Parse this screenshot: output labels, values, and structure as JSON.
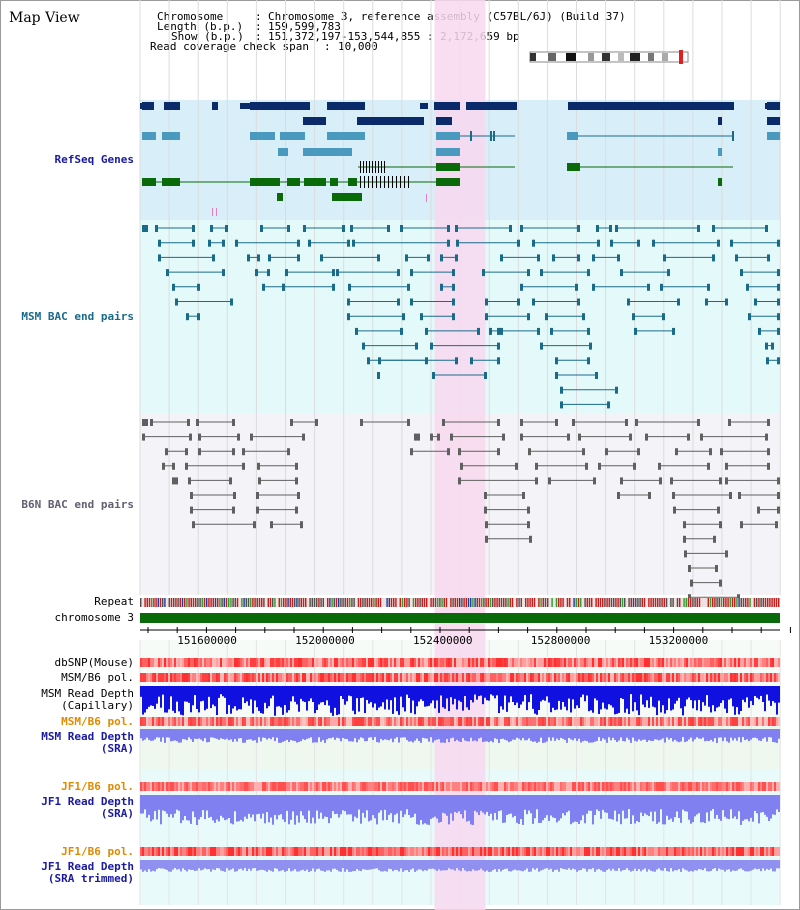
{
  "page_title": "Map View",
  "header": {
    "chromosome_key": "Chromosome",
    "chromosome_val": "Chromosome 3, reference assembly (C57BL/6J) (Build 37)",
    "length_key": "Length (b.p.)",
    "length_val": "159,599,783",
    "show_key": "Show (b.p.)",
    "show_val": "151,372,197-153,544,855 : 2,172,659 bp",
    "coverage_key": "Read coverage check span",
    "coverage_val": "10,000"
  },
  "tracks": {
    "refseq": "RefSeq Genes",
    "msm_bac": "MSM BAC end pairs",
    "b6n_bac": "B6N BAC end pairs",
    "repeat": "Repeat",
    "chromosome": "chromosome 3",
    "dbsnp": "dbSNP(Mouse)",
    "msm_b6_pol": "MSM/B6 pol.",
    "msm_depth_cap_1": "MSM Read Depth",
    "msm_depth_cap_2": "(Capillary)",
    "msm_b6_pol_sra": "MSM/B6 pol.",
    "msm_depth_sra_1": "MSM Read Depth",
    "msm_depth_sra_2": "(SRA)",
    "jf1_b6_pol": "JF1/B6 pol.",
    "jf1_depth_1": "JF1 Read Depth",
    "jf1_depth_2": "(SRA)",
    "jf1_b6_pol_2": "JF1/B6 pol.",
    "jf1_trim_1": "JF1 Read Depth",
    "jf1_trim_2": "(SRA trimmed)"
  },
  "axis": {
    "ticks": [
      "151600000",
      "152000000",
      "152400000",
      "152800000",
      "153200000"
    ],
    "tick_positions_bp": [
      151600000,
      152000000,
      152400000,
      152800000,
      153200000
    ],
    "range_bp": [
      151372197,
      153544855
    ]
  },
  "highlight_region_bp": [
    152372000,
    152545000
  ],
  "colors": {
    "refseq_bg": "#d8eef8",
    "msm_bg": "#e4fafa",
    "b6n_bg": "#f4f4f8",
    "highlight": "#f8d8f0",
    "gene_dark": "#0a2a6a",
    "gene_mid": "#4a9ac0",
    "gene_green": "#0a6a0a",
    "msm_line": "#1a6a8a",
    "b6n_line": "#606060",
    "label_blue": "#1a1aa0",
    "label_teal": "#1a6a8a",
    "label_orange": "#e08a00",
    "chrom_green": "#0a6a0a",
    "pol_red": "#ff5050",
    "depth_blue": "#1010e0",
    "depth_light": "#8080f0"
  }
}
